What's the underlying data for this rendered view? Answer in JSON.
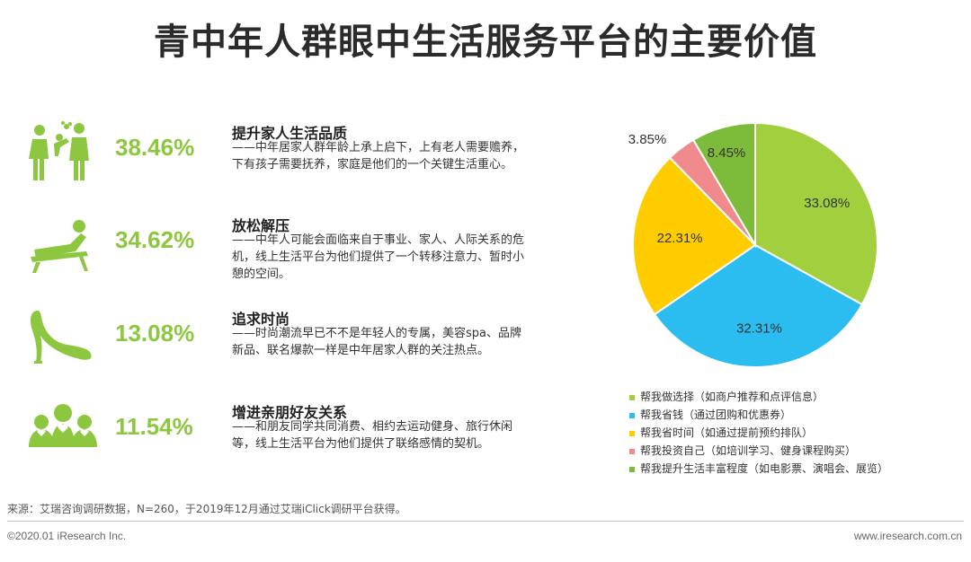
{
  "title": "青中年人群眼中生活服务平台的主要价值",
  "items": [
    {
      "percent": "38.46%",
      "heading": "提升家人生活品质",
      "desc": "——中年居家人群年龄上承上启下，上有老人需要赡养，下有孩子需要抚养，家庭是他们的一个关键生活重心。",
      "icon": "family-icon"
    },
    {
      "percent": "34.62%",
      "heading": "放松解压",
      "desc": "——中年人可能会面临来自于事业、家人、人际关系的危机，线上生活平台为他们提供了一个转移注意力、暂时小憩的空间。",
      "icon": "lounge-chair-icon"
    },
    {
      "percent": "13.08%",
      "heading": "追求时尚",
      "desc": "——时尚潮流早已不不是年轻人的专属，美容spa、品牌新品、联名爆款一样是中年居家人群的关注热点。",
      "icon": "high-heel-icon"
    },
    {
      "percent": "11.54%",
      "heading": "增进亲朋好友关系",
      "desc": "——和朋友同学共同消费、相约去运动健身、旅行休闲等，线上生活平台为他们提供了联络感情的契机。",
      "icon": "friends-icon"
    }
  ],
  "chart_data": {
    "type": "pie",
    "title": "",
    "labels": [
      "帮我做选择（如商户推荐和点评信息）",
      "帮我省钱（通过团购和优惠券）",
      "帮我省时间（如通过提前预约排队）",
      "帮我投资自己（如培训学习、健身课程购买）",
      "帮我提升生活丰富程度（如电影票、演唱会、展览）"
    ],
    "values": [
      33.08,
      32.31,
      22.31,
      3.85,
      8.45
    ],
    "value_labels": [
      "33.08%",
      "32.31%",
      "22.31%",
      "3.85%",
      "8.45%"
    ],
    "colors": [
      "#a2cf3e",
      "#2bbdf0",
      "#ffcc00",
      "#f08a8d",
      "#7dbb3a"
    ],
    "start_angle_deg": 0,
    "direction": "clockwise"
  },
  "source": "来源：艾瑞咨询调研数据，N=260，于2019年12月通过艾瑞iClick调研平台获得。",
  "footer": {
    "left": "©2020.01 iResearch Inc.",
    "right": "www.iresearch.com.cn"
  }
}
